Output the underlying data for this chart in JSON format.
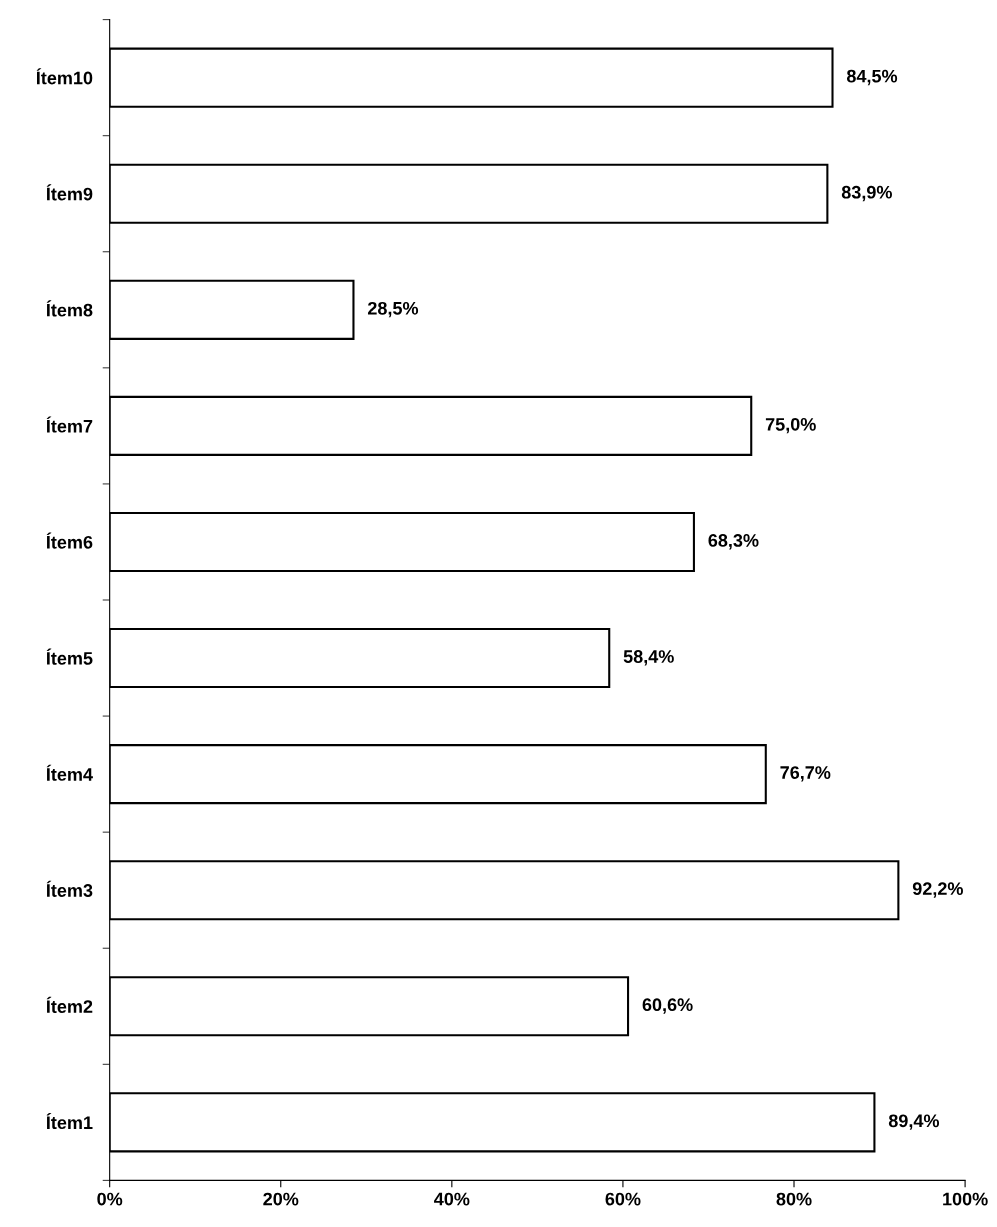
{
  "chart_data": {
    "type": "bar",
    "orientation": "horizontal",
    "categories": [
      "Ítem10",
      "Ítem9",
      "Ítem8",
      "Ítem7",
      "Ítem6",
      "Ítem5",
      "Ítem4",
      "Ítem3",
      "Ítem2",
      "Ítem1"
    ],
    "values": [
      84.5,
      83.9,
      28.5,
      75.0,
      68.3,
      58.4,
      76.7,
      92.2,
      60.6,
      89.4
    ],
    "value_labels": [
      "84,5%",
      "83,9%",
      "28,5%",
      "75,0%",
      "68,3%",
      "58,4%",
      "76,7%",
      "92,2%",
      "60,6%",
      "89,4%"
    ],
    "color": "#ffffff",
    "xlim": [
      0,
      100
    ],
    "xticks": [
      {
        "value": 0,
        "label": "0%"
      },
      {
        "value": 20,
        "label": "20%"
      },
      {
        "value": 40,
        "label": "40%"
      },
      {
        "value": 60,
        "label": "60%"
      },
      {
        "value": 80,
        "label": "80%"
      },
      {
        "value": 100,
        "label": "100%"
      }
    ],
    "grid": false,
    "legend": false
  }
}
